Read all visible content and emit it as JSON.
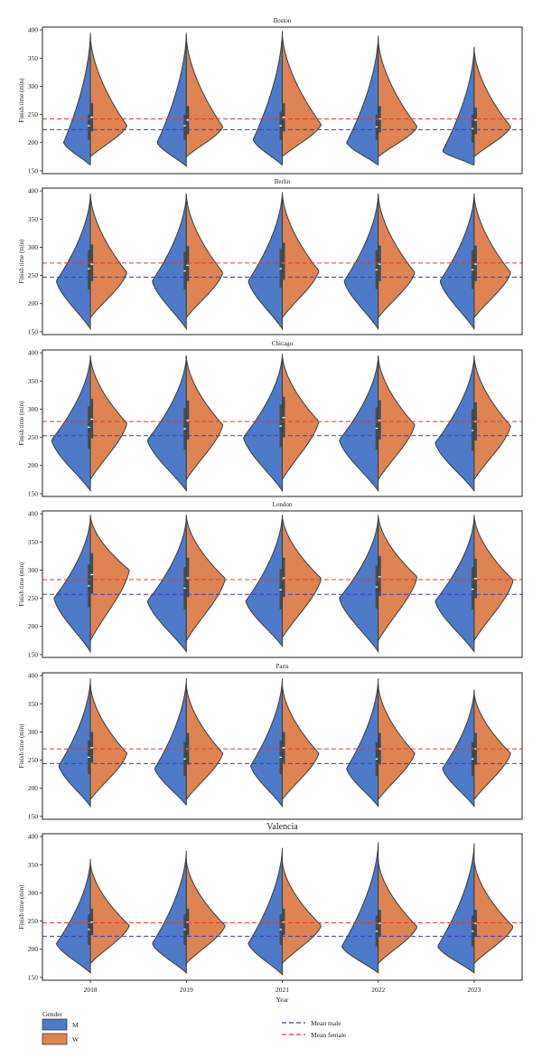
{
  "chart_data": {
    "type": "violin",
    "xlabel": "Year",
    "ylabel": "Finish time (min)",
    "categories": [
      "2018",
      "2019",
      "2021",
      "2022",
      "2023"
    ],
    "ylim": [
      145,
      405
    ],
    "yticks": [
      150,
      200,
      250,
      300,
      350,
      400
    ],
    "legend": {
      "title": "Gender",
      "entries": [
        "M",
        "W"
      ],
      "line_entries": [
        "Mean male",
        "Mean female"
      ],
      "placement": "bottom"
    },
    "colors": {
      "M": "#4e7ac7",
      "W": "#dd8452",
      "mean_male": "#3b3bd0",
      "mean_female": "#e8392a"
    },
    "panels": [
      {
        "title": "Boston",
        "mean_male": 223,
        "mean_female": 242,
        "violins": [
          {
            "year": "2018",
            "M": {
              "min": 160,
              "max": 395,
              "peak": 200,
              "wpeak": 0.55,
              "median": 230,
              "q1": 205,
              "q3": 250
            },
            "W": {
              "min": 175,
              "max": 390,
              "peak": 230,
              "wpeak": 0.75,
              "median": 245,
              "q1": 220,
              "q3": 270
            }
          },
          {
            "year": "2019",
            "M": {
              "min": 158,
              "max": 395,
              "peak": 200,
              "wpeak": 0.6,
              "median": 230,
              "q1": 205,
              "q3": 250
            },
            "W": {
              "min": 175,
              "max": 390,
              "peak": 228,
              "wpeak": 0.75,
              "median": 240,
              "q1": 215,
              "q3": 265
            }
          },
          {
            "year": "2021",
            "M": {
              "min": 160,
              "max": 398,
              "peak": 205,
              "wpeak": 0.6,
              "median": 230,
              "q1": 205,
              "q3": 255
            },
            "W": {
              "min": 175,
              "max": 395,
              "peak": 232,
              "wpeak": 0.8,
              "median": 245,
              "q1": 220,
              "q3": 270
            }
          },
          {
            "year": "2022",
            "M": {
              "min": 160,
              "max": 390,
              "peak": 200,
              "wpeak": 0.65,
              "median": 228,
              "q1": 205,
              "q3": 250
            },
            "W": {
              "min": 175,
              "max": 385,
              "peak": 228,
              "wpeak": 0.8,
              "median": 242,
              "q1": 218,
              "q3": 265
            }
          },
          {
            "year": "2023",
            "M": {
              "min": 160,
              "max": 370,
              "peak": 185,
              "wpeak": 0.65,
              "median": 225,
              "q1": 200,
              "q3": 250
            },
            "W": {
              "min": 175,
              "max": 368,
              "peak": 228,
              "wpeak": 0.75,
              "median": 240,
              "q1": 215,
              "q3": 262
            }
          }
        ]
      },
      {
        "title": "Berlin",
        "mean_male": 247,
        "mean_female": 272,
        "violins": [
          {
            "year": "2018",
            "M": {
              "min": 155,
              "max": 395,
              "peak": 240,
              "wpeak": 0.7,
              "median": 262,
              "q1": 225,
              "q3": 295
            },
            "W": {
              "min": 175,
              "max": 395,
              "peak": 255,
              "wpeak": 0.75,
              "median": 270,
              "q1": 240,
              "q3": 305
            }
          },
          {
            "year": "2019",
            "M": {
              "min": 155,
              "max": 395,
              "peak": 240,
              "wpeak": 0.7,
              "median": 258,
              "q1": 225,
              "q3": 292
            },
            "W": {
              "min": 175,
              "max": 395,
              "peak": 255,
              "wpeak": 0.75,
              "median": 268,
              "q1": 240,
              "q3": 302
            }
          },
          {
            "year": "2021",
            "M": {
              "min": 155,
              "max": 398,
              "peak": 240,
              "wpeak": 0.7,
              "median": 262,
              "q1": 228,
              "q3": 298
            },
            "W": {
              "min": 175,
              "max": 398,
              "peak": 258,
              "wpeak": 0.75,
              "median": 272,
              "q1": 242,
              "q3": 308
            }
          },
          {
            "year": "2022",
            "M": {
              "min": 155,
              "max": 395,
              "peak": 240,
              "wpeak": 0.7,
              "median": 260,
              "q1": 226,
              "q3": 295
            },
            "W": {
              "min": 175,
              "max": 395,
              "peak": 255,
              "wpeak": 0.75,
              "median": 270,
              "q1": 240,
              "q3": 303
            }
          },
          {
            "year": "2023",
            "M": {
              "min": 155,
              "max": 395,
              "peak": 240,
              "wpeak": 0.7,
              "median": 260,
              "q1": 226,
              "q3": 295
            },
            "W": {
              "min": 175,
              "max": 395,
              "peak": 255,
              "wpeak": 0.75,
              "median": 270,
              "q1": 240,
              "q3": 303
            }
          }
        ]
      },
      {
        "title": "Chicago",
        "mean_male": 253,
        "mean_female": 278,
        "violins": [
          {
            "year": "2018",
            "M": {
              "min": 155,
              "max": 395,
              "peak": 245,
              "wpeak": 0.8,
              "median": 268,
              "q1": 230,
              "q3": 305
            },
            "W": {
              "min": 175,
              "max": 395,
              "peak": 275,
              "wpeak": 0.75,
              "median": 282,
              "q1": 248,
              "q3": 318
            }
          },
          {
            "year": "2019",
            "M": {
              "min": 155,
              "max": 395,
              "peak": 245,
              "wpeak": 0.8,
              "median": 265,
              "q1": 228,
              "q3": 302
            },
            "W": {
              "min": 175,
              "max": 395,
              "peak": 272,
              "wpeak": 0.75,
              "median": 280,
              "q1": 246,
              "q3": 315
            }
          },
          {
            "year": "2021",
            "M": {
              "min": 155,
              "max": 398,
              "peak": 250,
              "wpeak": 0.8,
              "median": 270,
              "q1": 232,
              "q3": 308
            },
            "W": {
              "min": 175,
              "max": 398,
              "peak": 278,
              "wpeak": 0.75,
              "median": 285,
              "q1": 250,
              "q3": 322
            }
          },
          {
            "year": "2022",
            "M": {
              "min": 155,
              "max": 395,
              "peak": 245,
              "wpeak": 0.8,
              "median": 266,
              "q1": 228,
              "q3": 303
            },
            "W": {
              "min": 175,
              "max": 395,
              "peak": 272,
              "wpeak": 0.75,
              "median": 280,
              "q1": 246,
              "q3": 316
            }
          },
          {
            "year": "2023",
            "M": {
              "min": 155,
              "max": 395,
              "peak": 240,
              "wpeak": 0.8,
              "median": 262,
              "q1": 226,
              "q3": 300
            },
            "W": {
              "min": 175,
              "max": 395,
              "peak": 270,
              "wpeak": 0.75,
              "median": 278,
              "q1": 244,
              "q3": 312
            }
          }
        ]
      },
      {
        "title": "London",
        "mean_male": 257,
        "mean_female": 283,
        "violins": [
          {
            "year": "2018",
            "M": {
              "min": 155,
              "max": 395,
              "peak": 250,
              "wpeak": 0.75,
              "median": 272,
              "q1": 234,
              "q3": 310
            },
            "W": {
              "min": 175,
              "max": 398,
              "peak": 300,
              "wpeak": 0.8,
              "median": 292,
              "q1": 258,
              "q3": 330
            }
          },
          {
            "year": "2019",
            "M": {
              "min": 155,
              "max": 395,
              "peak": 245,
              "wpeak": 0.8,
              "median": 268,
              "q1": 230,
              "q3": 305
            },
            "W": {
              "min": 175,
              "max": 398,
              "peak": 285,
              "wpeak": 0.8,
              "median": 286,
              "q1": 252,
              "q3": 322
            }
          },
          {
            "year": "2021",
            "M": {
              "min": 165,
              "max": 398,
              "peak": 245,
              "wpeak": 0.75,
              "median": 265,
              "q1": 230,
              "q3": 302
            },
            "W": {
              "min": 180,
              "max": 398,
              "peak": 285,
              "wpeak": 0.8,
              "median": 286,
              "q1": 252,
              "q3": 322
            }
          },
          {
            "year": "2022",
            "M": {
              "min": 155,
              "max": 395,
              "peak": 250,
              "wpeak": 0.8,
              "median": 270,
              "q1": 232,
              "q3": 308
            },
            "W": {
              "min": 175,
              "max": 398,
              "peak": 288,
              "wpeak": 0.8,
              "median": 288,
              "q1": 254,
              "q3": 325
            }
          },
          {
            "year": "2023",
            "M": {
              "min": 155,
              "max": 395,
              "peak": 245,
              "wpeak": 0.8,
              "median": 266,
              "q1": 230,
              "q3": 305
            },
            "W": {
              "min": 175,
              "max": 398,
              "peak": 282,
              "wpeak": 0.8,
              "median": 285,
              "q1": 250,
              "q3": 320
            }
          }
        ]
      },
      {
        "title": "Paris",
        "mean_male": 244,
        "mean_female": 270,
        "violins": [
          {
            "year": "2018",
            "M": {
              "min": 168,
              "max": 395,
              "peak": 240,
              "wpeak": 0.65,
              "median": 255,
              "q1": 225,
              "q3": 285
            },
            "W": {
              "min": 180,
              "max": 385,
              "peak": 262,
              "wpeak": 0.75,
              "median": 272,
              "q1": 245,
              "q3": 300
            }
          },
          {
            "year": "2019",
            "M": {
              "min": 170,
              "max": 395,
              "peak": 235,
              "wpeak": 0.65,
              "median": 252,
              "q1": 222,
              "q3": 282
            },
            "W": {
              "min": 180,
              "max": 385,
              "peak": 262,
              "wpeak": 0.75,
              "median": 270,
              "q1": 242,
              "q3": 298
            }
          },
          {
            "year": "2021",
            "M": {
              "min": 168,
              "max": 395,
              "peak": 240,
              "wpeak": 0.65,
              "median": 255,
              "q1": 225,
              "q3": 285
            },
            "W": {
              "min": 180,
              "max": 385,
              "peak": 262,
              "wpeak": 0.75,
              "median": 272,
              "q1": 245,
              "q3": 300
            }
          },
          {
            "year": "2022",
            "M": {
              "min": 168,
              "max": 395,
              "peak": 235,
              "wpeak": 0.65,
              "median": 252,
              "q1": 222,
              "q3": 282
            },
            "W": {
              "min": 180,
              "max": 385,
              "peak": 262,
              "wpeak": 0.75,
              "median": 270,
              "q1": 242,
              "q3": 298
            }
          },
          {
            "year": "2023",
            "M": {
              "min": 168,
              "max": 375,
              "peak": 235,
              "wpeak": 0.65,
              "median": 252,
              "q1": 222,
              "q3": 282
            },
            "W": {
              "min": 180,
              "max": 372,
              "peak": 262,
              "wpeak": 0.75,
              "median": 270,
              "q1": 242,
              "q3": 298
            }
          }
        ]
      },
      {
        "title": "Valencia",
        "mean_male": 223,
        "mean_female": 247,
        "violins": [
          {
            "year": "2018",
            "M": {
              "min": 158,
              "max": 360,
              "peak": 210,
              "wpeak": 0.7,
              "median": 235,
              "q1": 208,
              "q3": 262
            },
            "W": {
              "min": 175,
              "max": 355,
              "peak": 242,
              "wpeak": 0.8,
              "median": 248,
              "q1": 225,
              "q3": 272
            }
          },
          {
            "year": "2019",
            "M": {
              "min": 158,
              "max": 375,
              "peak": 210,
              "wpeak": 0.7,
              "median": 235,
              "q1": 208,
              "q3": 262
            },
            "W": {
              "min": 175,
              "max": 360,
              "peak": 242,
              "wpeak": 0.8,
              "median": 248,
              "q1": 225,
              "q3": 272
            }
          },
          {
            "year": "2021",
            "M": {
              "min": 155,
              "max": 380,
              "peak": 210,
              "wpeak": 0.7,
              "median": 235,
              "q1": 208,
              "q3": 262
            },
            "W": {
              "min": 175,
              "max": 358,
              "peak": 242,
              "wpeak": 0.8,
              "median": 248,
              "q1": 225,
              "q3": 272
            }
          },
          {
            "year": "2022",
            "M": {
              "min": 158,
              "max": 390,
              "peak": 205,
              "wpeak": 0.75,
              "median": 232,
              "q1": 205,
              "q3": 260
            },
            "W": {
              "min": 175,
              "max": 360,
              "peak": 240,
              "wpeak": 0.8,
              "median": 246,
              "q1": 222,
              "q3": 270
            }
          },
          {
            "year": "2023",
            "M": {
              "min": 158,
              "max": 388,
              "peak": 205,
              "wpeak": 0.75,
              "median": 232,
              "q1": 205,
              "q3": 260
            },
            "W": {
              "min": 175,
              "max": 360,
              "peak": 240,
              "wpeak": 0.8,
              "median": 246,
              "q1": 222,
              "q3": 270
            }
          }
        ]
      }
    ]
  }
}
